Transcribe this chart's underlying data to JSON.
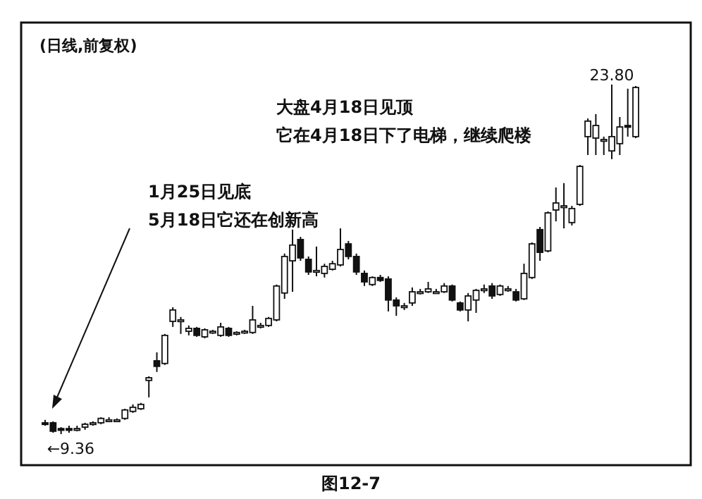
{
  "chart_data": {
    "type": "candlestick",
    "title": "(日线,前复权)",
    "categories": [
      null,
      null,
      null,
      null,
      null,
      null,
      null,
      null,
      null,
      null,
      null,
      null,
      null,
      null,
      null,
      null,
      null,
      null,
      null,
      null,
      null,
      null,
      null,
      null,
      null,
      null,
      null,
      null,
      null,
      null,
      null,
      null,
      null,
      null,
      null,
      null,
      null,
      null,
      null,
      null,
      null,
      null,
      null,
      null,
      null,
      null,
      null,
      null,
      null,
      null,
      null,
      null,
      null,
      null,
      null,
      null,
      null,
      null,
      null,
      null,
      null,
      null,
      null,
      null,
      null,
      null,
      null,
      null,
      null,
      null,
      null,
      null,
      null,
      null,
      null
    ],
    "ohlc": [
      [
        9.83,
        9.95,
        9.71,
        9.77
      ],
      [
        9.83,
        9.89,
        9.42,
        9.48
      ],
      [
        9.59,
        9.65,
        9.36,
        9.54
      ],
      [
        9.59,
        9.71,
        9.42,
        9.54
      ],
      [
        9.59,
        9.71,
        9.48,
        9.59
      ],
      [
        9.65,
        9.83,
        9.54,
        9.77
      ],
      [
        9.77,
        9.89,
        9.71,
        9.83
      ],
      [
        9.83,
        10.06,
        9.77,
        10.01
      ],
      [
        9.89,
        10.06,
        9.89,
        9.95
      ],
      [
        9.95,
        10.01,
        9.89,
        9.95
      ],
      [
        10.01,
        10.41,
        9.95,
        10.36
      ],
      [
        10.3,
        10.59,
        10.24,
        10.47
      ],
      [
        10.41,
        10.65,
        10.36,
        10.59
      ],
      [
        11.58,
        11.75,
        10.88,
        11.69
      ],
      [
        12.39,
        12.74,
        11.93,
        12.16
      ],
      [
        12.28,
        13.5,
        12.22,
        13.44
      ],
      [
        14.02,
        14.6,
        13.79,
        14.49
      ],
      [
        14.08,
        14.2,
        13.5,
        14.08
      ],
      [
        13.61,
        13.85,
        13.44,
        13.73
      ],
      [
        13.73,
        13.79,
        13.38,
        13.44
      ],
      [
        13.38,
        13.73,
        13.32,
        13.67
      ],
      [
        13.61,
        13.67,
        13.5,
        13.61
      ],
      [
        13.44,
        13.96,
        13.38,
        13.79
      ],
      [
        13.73,
        13.79,
        13.38,
        13.44
      ],
      [
        13.56,
        13.61,
        13.44,
        13.56
      ],
      [
        13.61,
        13.67,
        13.5,
        13.61
      ],
      [
        13.56,
        14.66,
        13.5,
        14.08
      ],
      [
        13.85,
        13.96,
        13.73,
        13.85
      ],
      [
        13.85,
        14.2,
        13.79,
        14.14
      ],
      [
        14.08,
        15.54,
        14.02,
        15.48
      ],
      [
        15.19,
        16.82,
        14.95,
        16.7
      ],
      [
        16.52,
        17.81,
        15.24,
        17.17
      ],
      [
        17.4,
        17.51,
        16.52,
        16.64
      ],
      [
        16.58,
        16.7,
        15.94,
        16.06
      ],
      [
        16.12,
        17.11,
        15.88,
        16.12
      ],
      [
        16,
        16.4,
        15.83,
        16.29
      ],
      [
        16.17,
        16.52,
        16.12,
        16.4
      ],
      [
        16.35,
        17.86,
        16.29,
        16.99
      ],
      [
        17.22,
        17.34,
        16.58,
        16.7
      ],
      [
        16.7,
        16.82,
        15.94,
        16.06
      ],
      [
        16,
        16.12,
        15.48,
        15.65
      ],
      [
        15.54,
        15.88,
        15.48,
        15.83
      ],
      [
        15.83,
        15.94,
        15.65,
        15.71
      ],
      [
        15.77,
        15.88,
        14.43,
        14.9
      ],
      [
        14.9,
        15.01,
        14.25,
        14.66
      ],
      [
        14.66,
        14.78,
        14.49,
        14.66
      ],
      [
        14.78,
        15.42,
        14.66,
        15.24
      ],
      [
        15.24,
        15.36,
        15.13,
        15.24
      ],
      [
        15.24,
        15.65,
        15.19,
        15.36
      ],
      [
        15.24,
        15.36,
        15.19,
        15.24
      ],
      [
        15.24,
        15.6,
        15.19,
        15.48
      ],
      [
        15.48,
        15.54,
        14.84,
        14.9
      ],
      [
        14.78,
        14.84,
        14.43,
        14.49
      ],
      [
        14.49,
        15.19,
        14.02,
        15.07
      ],
      [
        14.9,
        15.36,
        14.37,
        15.3
      ],
      [
        15.36,
        15.54,
        15.19,
        15.36
      ],
      [
        15.48,
        15.6,
        14.95,
        15.07
      ],
      [
        15.13,
        15.54,
        15.07,
        15.48
      ],
      [
        15.36,
        15.48,
        15.24,
        15.36
      ],
      [
        15.24,
        15.36,
        14.84,
        14.9
      ],
      [
        14.95,
        16.4,
        14.9,
        16
      ],
      [
        15.83,
        17.28,
        15.77,
        17.22
      ],
      [
        17.81,
        17.92,
        16.52,
        16.87
      ],
      [
        16.93,
        18.56,
        16.87,
        18.5
      ],
      [
        18.62,
        19.55,
        18.15,
        18.91
      ],
      [
        18.79,
        19.73,
        17.86,
        18.79
      ],
      [
        18.1,
        18.79,
        17.98,
        18.68
      ],
      [
        18.85,
        20.48,
        18.79,
        20.42
      ],
      [
        21.65,
        22.4,
        20.89,
        22.29
      ],
      [
        21.59,
        22.58,
        20.89,
        22.11
      ],
      [
        21.53,
        21.65,
        20.89,
        21.53
      ],
      [
        21.06,
        23.8,
        20.72,
        21.65
      ],
      [
        21.36,
        22.46,
        20.89,
        22.05
      ],
      [
        22.11,
        23.63,
        21.65,
        22.05
      ],
      [
        21.65,
        23.74,
        21.59,
        23.68
      ]
    ],
    "annotations": [
      {
        "text": "←9.36",
        "y": 9.36
      },
      {
        "text": "23.80",
        "y": 23.8
      },
      "1月25日见底",
      "5月18日它还在创新高",
      "大盘4月18日见顶",
      "它在4月18日下了电梯，继续爬楼",
      "图12-7"
    ]
  }
}
